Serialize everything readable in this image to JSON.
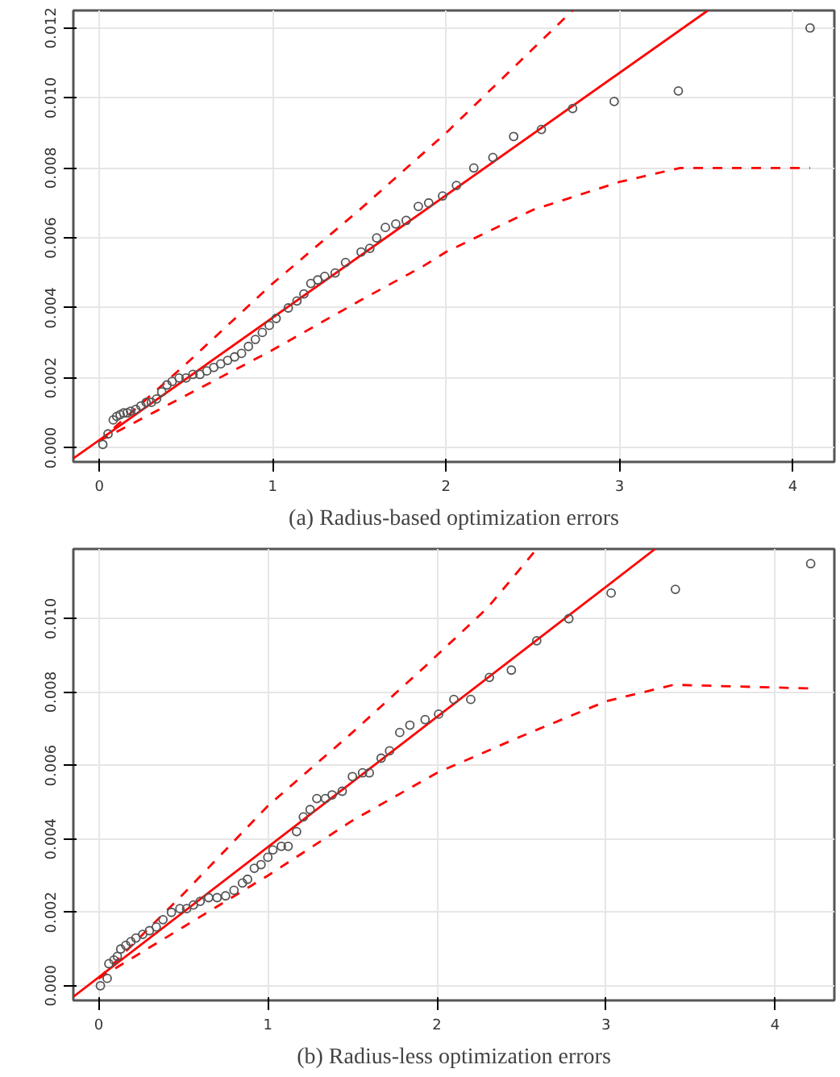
{
  "chart_data": [
    {
      "type": "scatter",
      "title": "(a) Radius-based optimization errors",
      "xlim": [
        -0.15,
        4.24
      ],
      "ylim": [
        -0.0004,
        0.0125
      ],
      "xticks": [
        0,
        1,
        2,
        3,
        4
      ],
      "yticks": [
        {
          "value": 0,
          "label": "0.000"
        },
        {
          "value": 0.002,
          "label": "0.002"
        },
        {
          "value": 0.004,
          "label": "0.004"
        },
        {
          "value": 0.006,
          "label": "0.006"
        },
        {
          "value": 0.008,
          "label": "0.008"
        },
        {
          "value": 0.01,
          "label": "0.010"
        },
        {
          "value": 0.012,
          "label": "0.012"
        }
      ],
      "grid": true,
      "series": [
        {
          "type": "line",
          "color": "#ff0000",
          "line_style": "solid",
          "x": [
            -0.15,
            3.51
          ],
          "values": [
            -0.0003,
            0.0125
          ]
        },
        {
          "type": "line",
          "color": "#ff0000",
          "line_style": "dashed",
          "x": [
            0.0,
            0.5,
            1.0,
            1.5,
            2.0,
            2.5,
            2.73
          ],
          "values": [
            0.0002,
            0.0024,
            0.0047,
            0.0068,
            0.009,
            0.0114,
            0.0125
          ]
        },
        {
          "type": "line",
          "color": "#ff0000",
          "line_style": "dashed",
          "x": [
            0.0,
            0.5,
            1.0,
            1.5,
            1.87,
            2.0,
            2.5,
            3.0,
            3.35,
            4.1
          ],
          "values": [
            0.0002,
            0.0015,
            0.0028,
            0.0042,
            0.0052,
            0.0056,
            0.0068,
            0.0076,
            0.008,
            0.008
          ]
        },
        {
          "marker": "circle",
          "color": "#555555",
          "x": [
            0.02,
            0.05,
            0.08,
            0.1,
            0.12,
            0.14,
            0.16,
            0.18,
            0.21,
            0.24,
            0.27,
            0.3,
            0.33,
            0.36,
            0.39,
            0.42,
            0.46,
            0.5,
            0.54,
            0.58,
            0.62,
            0.66,
            0.7,
            0.74,
            0.78,
            0.82,
            0.86,
            0.9,
            0.94,
            0.98,
            1.02,
            1.09,
            1.14,
            1.18,
            1.22,
            1.26,
            1.3,
            1.36,
            1.42,
            1.51,
            1.56,
            1.6,
            1.65,
            1.71,
            1.77,
            1.84,
            1.9,
            1.98,
            2.06,
            2.16,
            2.27,
            2.39,
            2.55,
            2.73,
            2.97,
            3.34,
            4.1
          ],
          "values": [
            0.0001,
            0.0004,
            0.0008,
            0.0009,
            0.00095,
            0.001,
            0.001,
            0.00105,
            0.0011,
            0.0012,
            0.0013,
            0.0013,
            0.0014,
            0.0016,
            0.0018,
            0.0019,
            0.002,
            0.002,
            0.0021,
            0.0021,
            0.0022,
            0.0023,
            0.0024,
            0.0025,
            0.0026,
            0.0027,
            0.0029,
            0.0031,
            0.0033,
            0.0035,
            0.0037,
            0.004,
            0.0042,
            0.0044,
            0.0047,
            0.0048,
            0.0049,
            0.005,
            0.0053,
            0.0056,
            0.0057,
            0.006,
            0.0063,
            0.0064,
            0.0065,
            0.0069,
            0.007,
            0.0072,
            0.0075,
            0.008,
            0.0083,
            0.0089,
            0.0091,
            0.0097,
            0.0099,
            0.0102,
            0.012
          ]
        }
      ]
    },
    {
      "type": "scatter",
      "title": "(b) Radius-less optimization errors",
      "xlim": [
        -0.15,
        4.35
      ],
      "ylim": [
        -0.0004,
        0.0119
      ],
      "xticks": [
        0,
        1,
        2,
        3,
        4
      ],
      "yticks": [
        {
          "value": 0,
          "label": "0.000"
        },
        {
          "value": 0.002,
          "label": "0.002"
        },
        {
          "value": 0.004,
          "label": "0.004"
        },
        {
          "value": 0.006,
          "label": "0.006"
        },
        {
          "value": 0.008,
          "label": "0.008"
        },
        {
          "value": 0.01,
          "label": "0.010"
        }
      ],
      "grid": true,
      "series": [
        {
          "type": "line",
          "color": "#ff0000",
          "line_style": "solid",
          "x": [
            -0.15,
            3.29
          ],
          "values": [
            -0.0003,
            0.0119
          ]
        },
        {
          "type": "line",
          "color": "#ff0000",
          "line_style": "dashed",
          "x": [
            0.0,
            0.5,
            1.0,
            1.5,
            1.93,
            2.3,
            2.59
          ],
          "values": [
            0.0002,
            0.0025,
            0.0049,
            0.0069,
            0.0087,
            0.0103,
            0.0119
          ]
        },
        {
          "type": "line",
          "color": "#ff0000",
          "line_style": "dashed",
          "x": [
            0.0,
            0.5,
            1.0,
            1.5,
            2.0,
            2.5,
            3.0,
            3.4,
            4.21
          ],
          "values": [
            0.0002,
            0.0016,
            0.003,
            0.0045,
            0.0058,
            0.0068,
            0.00775,
            0.0082,
            0.0081
          ]
        },
        {
          "marker": "circle",
          "color": "#555555",
          "x": [
            0.01,
            0.05,
            0.06,
            0.09,
            0.11,
            0.13,
            0.16,
            0.19,
            0.22,
            0.26,
            0.3,
            0.34,
            0.38,
            0.43,
            0.48,
            0.52,
            0.56,
            0.6,
            0.65,
            0.7,
            0.75,
            0.8,
            0.85,
            0.88,
            0.92,
            0.96,
            1.0,
            1.03,
            1.08,
            1.12,
            1.17,
            1.21,
            1.25,
            1.29,
            1.34,
            1.38,
            1.44,
            1.5,
            1.56,
            1.6,
            1.67,
            1.72,
            1.78,
            1.84,
            1.93,
            2.01,
            2.1,
            2.2,
            2.31,
            2.44,
            2.59,
            2.78,
            3.03,
            3.41,
            4.21
          ],
          "values": [
            0.0,
            0.0002,
            0.0006,
            0.0007,
            0.0008,
            0.001,
            0.0011,
            0.0012,
            0.0013,
            0.0014,
            0.0015,
            0.0016,
            0.0018,
            0.002,
            0.0021,
            0.0021,
            0.0022,
            0.0023,
            0.0024,
            0.0024,
            0.00245,
            0.0026,
            0.0028,
            0.0029,
            0.0032,
            0.0033,
            0.0035,
            0.0037,
            0.0038,
            0.0038,
            0.0042,
            0.0046,
            0.0048,
            0.0051,
            0.0051,
            0.0052,
            0.0053,
            0.0057,
            0.0058,
            0.0058,
            0.0062,
            0.0064,
            0.0069,
            0.0071,
            0.00725,
            0.0074,
            0.0078,
            0.0078,
            0.0084,
            0.0086,
            0.0094,
            0.01,
            0.0107,
            0.0108,
            0.0115
          ]
        }
      ]
    }
  ]
}
